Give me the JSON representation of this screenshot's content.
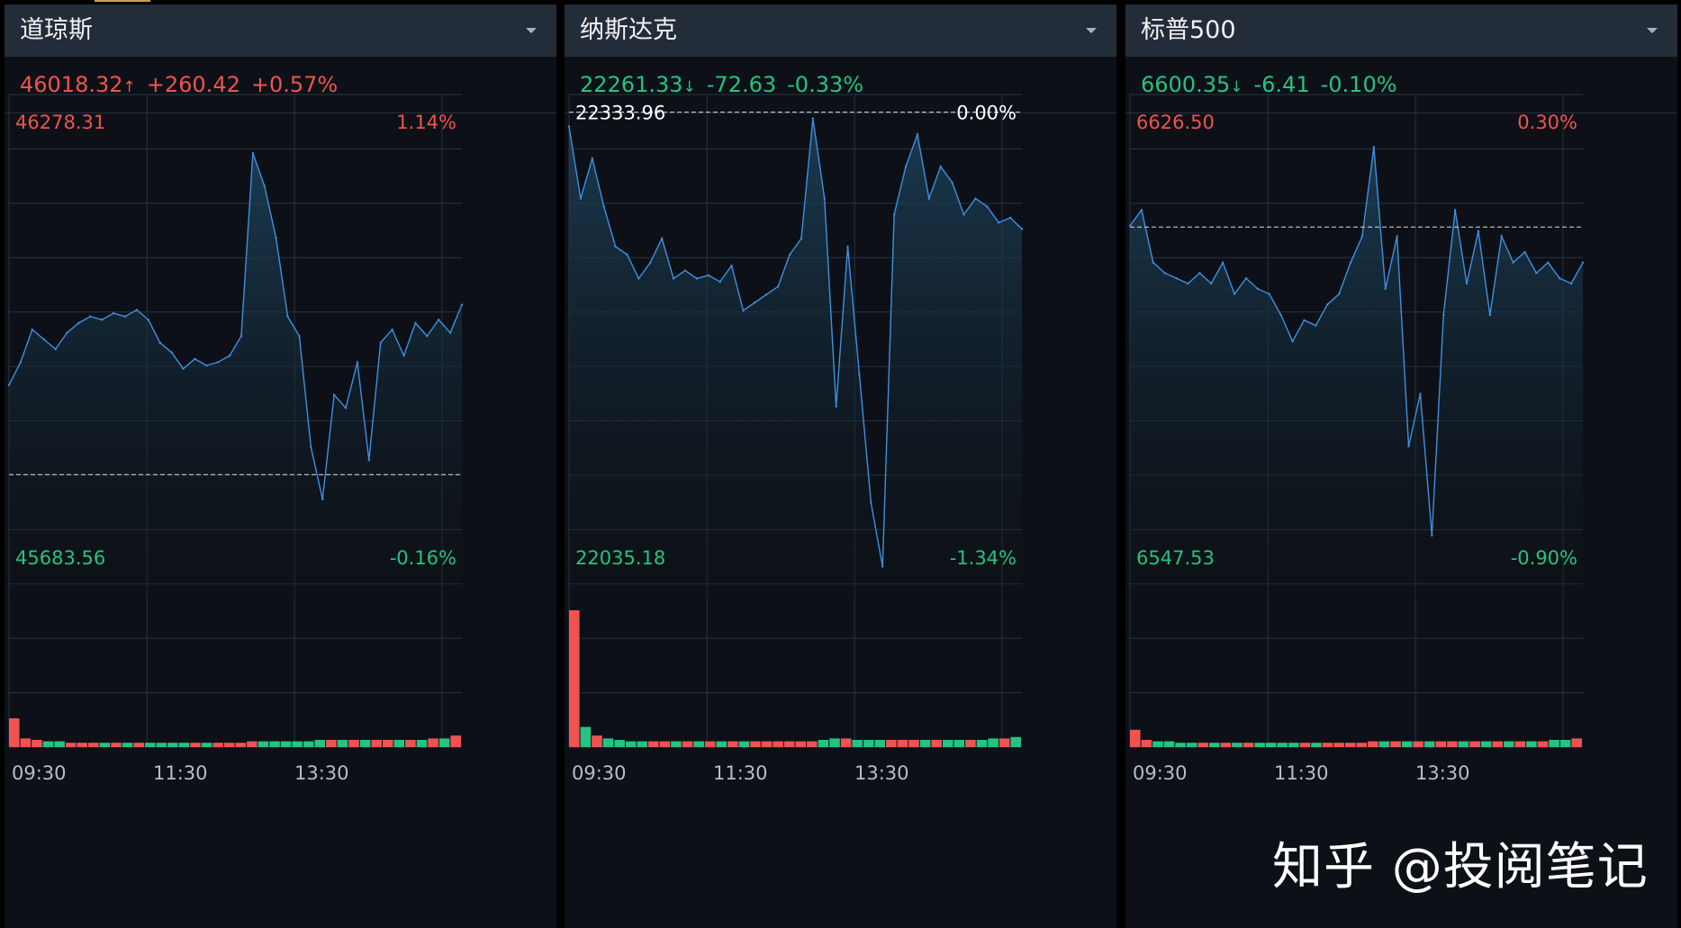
{
  "watermark": "知乎 @投阅笔记",
  "chart_data": [
    {
      "type": "line",
      "title": "道琼斯",
      "quote": {
        "price": "46018.32",
        "arrow": "↑",
        "change": "+260.42",
        "pct": "+0.57%",
        "direction": "up"
      },
      "prev_close": 45757.9,
      "y_max_label": "46278.31",
      "y_max_pct": "1.14%",
      "y_min_label": "45683.56",
      "y_min_pct": "-0.16%",
      "ylim": [
        45568.0,
        46340.0
      ],
      "x_ticks": [
        "09:30",
        "11:30",
        "13:30"
      ],
      "baseline_label": "",
      "baseline_pct": "",
      "x": [
        0,
        10,
        20,
        30,
        40,
        50,
        60,
        70,
        80,
        90,
        100,
        110,
        120,
        130,
        140,
        150,
        160,
        170,
        180,
        190,
        200,
        210,
        220,
        230,
        240,
        250,
        260,
        270,
        280,
        290,
        300,
        310,
        320,
        330,
        340,
        350,
        360,
        370,
        380,
        390
      ],
      "y": [
        45895,
        45930,
        45980,
        45965,
        45950,
        45975,
        45990,
        46000,
        45995,
        46005,
        46000,
        46010,
        45995,
        45960,
        45945,
        45920,
        45935,
        45925,
        45930,
        45940,
        45970,
        46250,
        46200,
        46120,
        46000,
        45970,
        45800,
        45720,
        45880,
        45860,
        45930,
        45780,
        45960,
        45980,
        45940,
        45990,
        45970,
        45995,
        45975,
        46018
      ],
      "volume": [
        20,
        6,
        5,
        4,
        4,
        3,
        3,
        3,
        3,
        3,
        3,
        3,
        3,
        3,
        3,
        3,
        3,
        3,
        3,
        3,
        3,
        4,
        4,
        4,
        4,
        4,
        4,
        5,
        5,
        5,
        5,
        5,
        5,
        5,
        5,
        5,
        5,
        6,
        6,
        8
      ],
      "colors": {
        "line": "#3f8fe0",
        "up": "#ef5350",
        "down": "#26c281"
      }
    },
    {
      "type": "line",
      "title": "纳斯达克",
      "quote": {
        "price": "22261.33",
        "arrow": "↓",
        "change": "-72.63",
        "pct": "-0.33%",
        "direction": "down"
      },
      "prev_close": 22333.96,
      "y_max_label": "",
      "y_max_pct": "",
      "y_min_label": "22035.18",
      "y_min_pct": "-1.34%",
      "ylim": [
        22030.0,
        22345.0
      ],
      "x_ticks": [
        "09:30",
        "11:30",
        "13:30"
      ],
      "baseline_label": "22333.96",
      "baseline_pct": "0.00%",
      "x": [
        0,
        10,
        20,
        30,
        40,
        50,
        60,
        70,
        80,
        90,
        100,
        110,
        120,
        130,
        140,
        150,
        160,
        170,
        180,
        190,
        200,
        210,
        220,
        230,
        240,
        250,
        260,
        270,
        280,
        290,
        300,
        310,
        320,
        330,
        340,
        350,
        360,
        370,
        380,
        390
      ],
      "y": [
        22325,
        22280,
        22305,
        22275,
        22250,
        22245,
        22230,
        22240,
        22255,
        22230,
        22235,
        22230,
        22232,
        22228,
        22238,
        22210,
        22215,
        22220,
        22225,
        22245,
        22255,
        22330,
        22280,
        22150,
        22250,
        22170,
        22090,
        22050,
        22270,
        22300,
        22320,
        22280,
        22300,
        22290,
        22270,
        22280,
        22275,
        22265,
        22268,
        22261
      ],
      "volume": [
        95,
        14,
        8,
        6,
        5,
        4,
        4,
        4,
        4,
        4,
        4,
        4,
        4,
        4,
        4,
        4,
        4,
        4,
        4,
        4,
        4,
        4,
        5,
        6,
        6,
        5,
        5,
        5,
        5,
        5,
        5,
        5,
        5,
        5,
        5,
        5,
        5,
        6,
        6,
        7
      ],
      "colors": {
        "line": "#3f8fe0",
        "up": "#ef5350",
        "down": "#26c281"
      }
    },
    {
      "type": "line",
      "title": "标普500",
      "quote": {
        "price": "6600.35",
        "arrow": "↓",
        "change": "-6.41",
        "pct": "-0.10%",
        "direction": "down"
      },
      "prev_close": 6606.76,
      "y_max_label": "6626.50",
      "y_max_pct": "0.30%",
      "y_min_label": "6547.53",
      "y_min_pct": "-0.90%",
      "ylim": [
        6536.0,
        6632.0
      ],
      "x_ticks": [
        "09:30",
        "11:30",
        "13:30"
      ],
      "baseline_label": "",
      "baseline_pct": "",
      "x": [
        0,
        10,
        20,
        30,
        40,
        50,
        60,
        70,
        80,
        90,
        100,
        110,
        120,
        130,
        140,
        150,
        160,
        170,
        180,
        190,
        200,
        210,
        220,
        230,
        240,
        250,
        260,
        270,
        280,
        290,
        300,
        310,
        320,
        330,
        340,
        350,
        360,
        370,
        380,
        390
      ],
      "y": [
        6607,
        6610,
        6600,
        6598,
        6597,
        6596,
        6598,
        6596,
        6600,
        6594,
        6597,
        6595,
        6594,
        6590,
        6585,
        6589,
        6588,
        6592,
        6594,
        6600,
        6605,
        6622,
        6595,
        6605,
        6565,
        6575,
        6548,
        6590,
        6610,
        6596,
        6606,
        6590,
        6605,
        6600,
        6602,
        6598,
        6600,
        6597,
        6596,
        6600
      ],
      "volume": [
        12,
        5,
        4,
        4,
        3,
        3,
        3,
        3,
        3,
        3,
        3,
        3,
        3,
        3,
        3,
        3,
        3,
        3,
        3,
        3,
        3,
        4,
        4,
        4,
        4,
        4,
        4,
        4,
        4,
        4,
        4,
        4,
        4,
        4,
        4,
        4,
        4,
        5,
        5,
        6
      ],
      "colors": {
        "line": "#3f8fe0",
        "up": "#ef5350",
        "down": "#26c281"
      }
    }
  ]
}
